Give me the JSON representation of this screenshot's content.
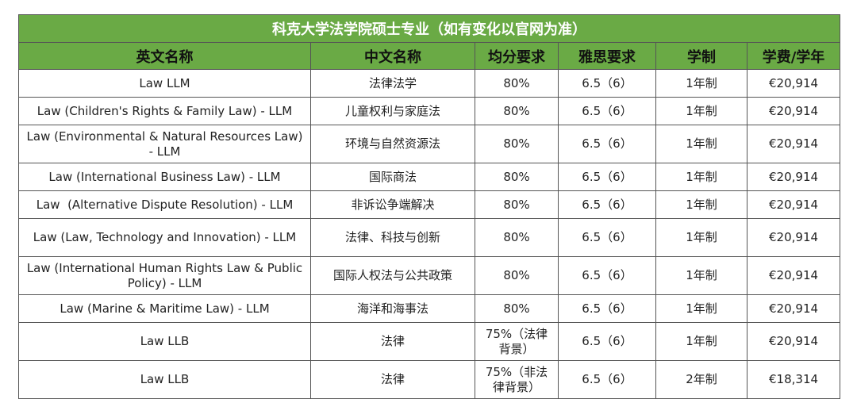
{
  "table": {
    "title": "科克大学法学院硕士专业（如有变化以官网为准）",
    "headers": [
      "英文名称",
      "中文名称",
      "均分要求",
      "雅思要求",
      "学制",
      "学费/学年"
    ],
    "rows": [
      [
        "Law LLM",
        "法律法学",
        "80%",
        "6.5（6）",
        "1年制",
        "€20,914"
      ],
      [
        "Law (Children's Rights & Family Law) - LLM",
        "儿童权利与家庭法",
        "80%",
        "6.5（6）",
        "1年制",
        "€20,914"
      ],
      [
        "Law (Environmental & Natural Resources Law) - LLM",
        "环境与自然资源法",
        "80%",
        "6.5（6）",
        "1年制",
        "€20,914"
      ],
      [
        "Law (International Business Law) - LLM",
        "国际商法",
        "80%",
        "6.5（6）",
        "1年制",
        "€20,914"
      ],
      [
        "Law  (Alternative Dispute Resolution) - LLM",
        "非诉讼争端解决",
        "80%",
        "6.5（6）",
        "1年制",
        "€20,914"
      ],
      [
        "Law (Law, Technology and Innovation) - LLM",
        "法律、科技与创新",
        "80%",
        "6.5（6）",
        "1年制",
        "€20,914"
      ],
      [
        "Law (International Human Rights Law & Public Policy) - LLM",
        "国际人权法与公共政策",
        "80%",
        "6.5（6）",
        "1年制",
        "€20,914"
      ],
      [
        "Law (Marine & Maritime Law) - LLM",
        "海洋和海事法",
        "80%",
        "6.5（6）",
        "1年制",
        "€20,914"
      ],
      [
        "Law LLB",
        "法律",
        "75%（法律背景）",
        "6.5（6）",
        "1年制",
        "€20,914"
      ],
      [
        "Law LLB",
        "法律",
        "75%（非法律背景）",
        "6.5（6）",
        "2年制",
        "€18,314"
      ]
    ]
  }
}
